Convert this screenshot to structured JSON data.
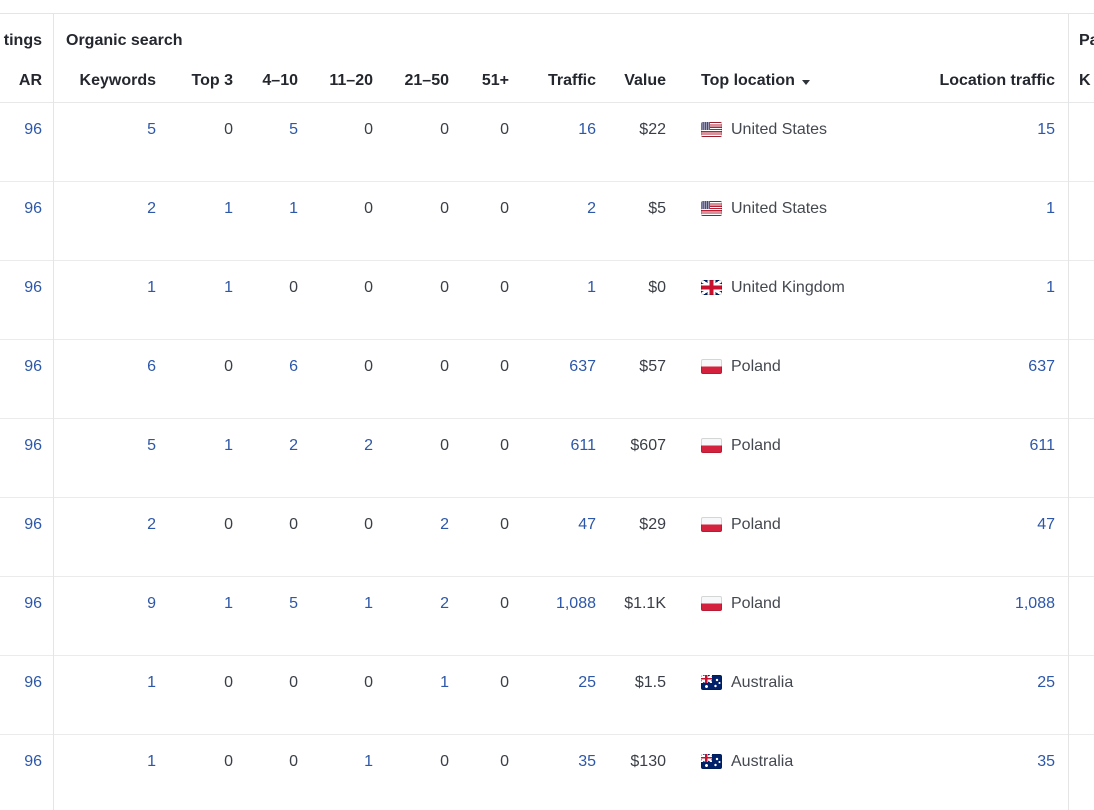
{
  "header": {
    "left_group_label": "tings",
    "organic_group_label": "Organic search",
    "paid_group_label": "Pa",
    "columns": {
      "ar": "AR",
      "keywords": "Keywords",
      "top3": "Top 3",
      "r4_10": "4–10",
      "r11_20": "11–20",
      "r21_50": "21–50",
      "r51plus": "51+",
      "traffic": "Traffic",
      "value": "Value",
      "top_location": "Top location",
      "location_traffic": "Location traffic",
      "paid_keywords": "K"
    },
    "sort_column": "Top location",
    "sort_icon": "caret-down"
  },
  "colors": {
    "link_blue": "#2d57a8",
    "header_text": "#24272e",
    "body_text": "#3a3e46",
    "divider_gray": "#e4e5e7"
  },
  "table": {
    "rows": [
      {
        "ar": "96",
        "keywords": "5",
        "top3": "0",
        "r4_10": "5",
        "r11_20": "0",
        "r21_50": "0",
        "r51plus": "0",
        "traffic": "16",
        "value": "$22",
        "flag": "us",
        "location": "United States",
        "loc_traffic": "15"
      },
      {
        "ar": "96",
        "keywords": "2",
        "top3": "1",
        "r4_10": "1",
        "r11_20": "0",
        "r21_50": "0",
        "r51plus": "0",
        "traffic": "2",
        "value": "$5",
        "flag": "us",
        "location": "United States",
        "loc_traffic": "1"
      },
      {
        "ar": "96",
        "keywords": "1",
        "top3": "1",
        "r4_10": "0",
        "r11_20": "0",
        "r21_50": "0",
        "r51plus": "0",
        "traffic": "1",
        "value": "$0",
        "flag": "gb",
        "location": "United Kingdom",
        "loc_traffic": "1"
      },
      {
        "ar": "96",
        "keywords": "6",
        "top3": "0",
        "r4_10": "6",
        "r11_20": "0",
        "r21_50": "0",
        "r51plus": "0",
        "traffic": "637",
        "value": "$57",
        "flag": "pl",
        "location": "Poland",
        "loc_traffic": "637"
      },
      {
        "ar": "96",
        "keywords": "5",
        "top3": "1",
        "r4_10": "2",
        "r11_20": "2",
        "r21_50": "0",
        "r51plus": "0",
        "traffic": "611",
        "value": "$607",
        "flag": "pl",
        "location": "Poland",
        "loc_traffic": "611"
      },
      {
        "ar": "96",
        "keywords": "2",
        "top3": "0",
        "r4_10": "0",
        "r11_20": "0",
        "r21_50": "2",
        "r51plus": "0",
        "traffic": "47",
        "value": "$29",
        "flag": "pl",
        "location": "Poland",
        "loc_traffic": "47"
      },
      {
        "ar": "96",
        "keywords": "9",
        "top3": "1",
        "r4_10": "5",
        "r11_20": "1",
        "r21_50": "2",
        "r51plus": "0",
        "traffic": "1,088",
        "value": "$1.1K",
        "flag": "pl",
        "location": "Poland",
        "loc_traffic": "1,088"
      },
      {
        "ar": "96",
        "keywords": "1",
        "top3": "0",
        "r4_10": "0",
        "r11_20": "0",
        "r21_50": "1",
        "r51plus": "0",
        "traffic": "25",
        "value": "$1.5",
        "flag": "au",
        "location": "Australia",
        "loc_traffic": "25"
      },
      {
        "ar": "96",
        "keywords": "1",
        "top3": "0",
        "r4_10": "0",
        "r11_20": "1",
        "r21_50": "0",
        "r51plus": "0",
        "traffic": "35",
        "value": "$130",
        "flag": "au",
        "location": "Australia",
        "loc_traffic": "35"
      }
    ]
  }
}
